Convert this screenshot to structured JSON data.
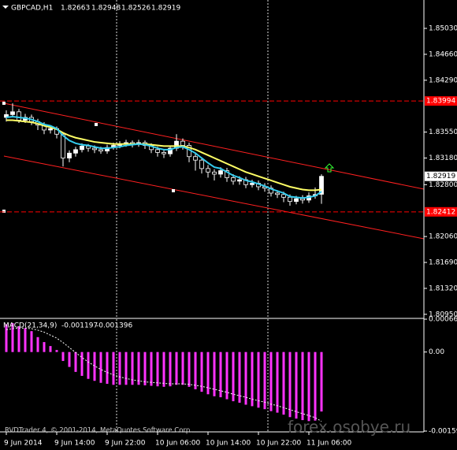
{
  "chart_data": [
    {
      "type": "candlestick",
      "title": "GBPCAD,H1",
      "categories": [
        "9 Jun 2014",
        null,
        null,
        null,
        null,
        null,
        null,
        null,
        "9 Jun 14:00",
        null,
        null,
        null,
        null,
        null,
        null,
        null,
        "9 Jun 22:00",
        null,
        null,
        null,
        null,
        null,
        null,
        null,
        "10 Jun 06:00",
        null,
        null,
        null,
        null,
        null,
        null,
        null,
        "10 Jun 14:00",
        null,
        null,
        null,
        null,
        null,
        null,
        null,
        "10 Jun 22:00",
        null,
        null,
        null,
        null,
        null,
        null,
        null,
        "11 Jun 06:00",
        null,
        null
      ],
      "open": [
        1.8376,
        1.838,
        1.8384,
        1.8372,
        1.8376,
        1.837,
        1.8365,
        1.8358,
        1.836,
        1.8352,
        1.8318,
        1.8325,
        1.833,
        1.8335,
        1.8332,
        1.833,
        1.8328,
        1.8333,
        1.8336,
        1.8338,
        1.834,
        1.8338,
        1.834,
        1.8336,
        1.833,
        1.8326,
        1.8324,
        1.8332,
        1.8342,
        1.8336,
        1.832,
        1.8315,
        1.8303,
        1.8298,
        1.8295,
        1.83,
        1.829,
        1.8285,
        1.8287,
        1.828,
        1.8282,
        1.8277,
        1.8275,
        1.8268,
        1.8266,
        1.8262,
        1.8256,
        1.826,
        1.8258,
        1.8264,
        1.82663
      ],
      "high": [
        1.8386,
        1.8396,
        1.8388,
        1.8381,
        1.838,
        1.8374,
        1.8369,
        1.8364,
        1.8363,
        1.8355,
        1.8329,
        1.8334,
        1.8339,
        1.8338,
        1.8336,
        1.8334,
        1.8337,
        1.834,
        1.8342,
        1.8344,
        1.8343,
        1.8344,
        1.8343,
        1.8339,
        1.8334,
        1.8331,
        1.8336,
        1.8352,
        1.8346,
        1.834,
        1.8326,
        1.8318,
        1.8308,
        1.8302,
        1.8305,
        1.8304,
        1.8295,
        1.8292,
        1.8291,
        1.8287,
        1.8286,
        1.8282,
        1.8279,
        1.8272,
        1.827,
        1.8266,
        1.8264,
        1.8265,
        1.8269,
        1.8276,
        1.82948
      ],
      "low": [
        1.837,
        1.8376,
        1.8368,
        1.8368,
        1.8365,
        1.8358,
        1.8352,
        1.8353,
        1.8346,
        1.8306,
        1.8312,
        1.832,
        1.8326,
        1.8327,
        1.8325,
        1.8324,
        1.8324,
        1.833,
        1.8332,
        1.8334,
        1.8333,
        1.8334,
        1.8331,
        1.8325,
        1.832,
        1.8318,
        1.832,
        1.8328,
        1.833,
        1.8312,
        1.83,
        1.8296,
        1.829,
        1.8286,
        1.829,
        1.8284,
        1.828,
        1.828,
        1.8275,
        1.8276,
        1.8272,
        1.827,
        1.8263,
        1.8261,
        1.8255,
        1.825,
        1.8252,
        1.8253,
        1.8254,
        1.826,
        1.82526
      ],
      "close": [
        1.838,
        1.8384,
        1.8372,
        1.8376,
        1.837,
        1.8365,
        1.8358,
        1.836,
        1.8352,
        1.8318,
        1.8325,
        1.833,
        1.8335,
        1.8332,
        1.833,
        1.8328,
        1.8333,
        1.8336,
        1.8338,
        1.834,
        1.8338,
        1.834,
        1.8336,
        1.833,
        1.8326,
        1.8324,
        1.8332,
        1.8342,
        1.8336,
        1.832,
        1.8315,
        1.8303,
        1.8298,
        1.8295,
        1.83,
        1.829,
        1.8285,
        1.8287,
        1.828,
        1.8282,
        1.8277,
        1.8275,
        1.8268,
        1.8266,
        1.8262,
        1.8256,
        1.826,
        1.8258,
        1.8264,
        1.8266,
        1.82919
      ],
      "up_color": "#ffffff",
      "down_color": "#000000",
      "wick_color": "#ffffff",
      "series": [
        {
          "color": "#ffff66",
          "values": [
            1.8372,
            1.8372,
            1.8371,
            1.837,
            1.8369,
            1.8367,
            1.8364,
            1.8362,
            1.8359,
            1.8354,
            1.835,
            1.8347,
            1.8345,
            1.8343,
            1.8341,
            1.834,
            1.8339,
            1.8338,
            1.8338,
            1.8338,
            1.8338,
            1.8338,
            1.8338,
            1.8337,
            1.8336,
            1.8335,
            1.8335,
            1.8335,
            1.8335,
            1.8333,
            1.833,
            1.8326,
            1.8322,
            1.8318,
            1.8314,
            1.831,
            1.8306,
            1.8302,
            1.8298,
            1.8295,
            1.8292,
            1.8289,
            1.8286,
            1.8283,
            1.828,
            1.8277,
            1.8275,
            1.8273,
            1.8272,
            1.8272,
            1.8273
          ]
        },
        {
          "color": "#33ccee",
          "values": [
            1.8376,
            1.8377,
            1.8376,
            1.8375,
            1.8373,
            1.837,
            1.8366,
            1.8364,
            1.836,
            1.835,
            1.8343,
            1.8339,
            1.8337,
            1.8336,
            1.8334,
            1.8332,
            1.8332,
            1.8333,
            1.8334,
            1.8336,
            1.8337,
            1.8338,
            1.8337,
            1.8335,
            1.8332,
            1.833,
            1.833,
            1.8333,
            1.8334,
            1.833,
            1.8325,
            1.8318,
            1.8311,
            1.8305,
            1.8303,
            1.8298,
            1.8293,
            1.829,
            1.8286,
            1.8284,
            1.8281,
            1.8278,
            1.8274,
            1.8271,
            1.8268,
            1.8263,
            1.8262,
            1.8261,
            1.8262,
            1.8264,
            1.827
          ]
        }
      ],
      "levels": [
        1.83994,
        1.82412
      ],
      "level_color": "#ff0000",
      "ylim": [
        1.80903,
        1.85435
      ],
      "yticks": [
        {
          "value": 1.8503,
          "label": "1.85030"
        },
        {
          "value": 1.8466,
          "label": "1.84660"
        },
        {
          "value": 1.8429,
          "label": "1.84290"
        },
        {
          "value": 1.8355,
          "label": "1.83550"
        },
        {
          "value": 1.8318,
          "label": "1.83180"
        },
        {
          "value": 1.828,
          "label": "1.82800"
        },
        {
          "value": 1.8206,
          "label": "1.82060"
        },
        {
          "value": 1.8169,
          "label": "1.81690"
        },
        {
          "value": 1.8132,
          "label": "1.81320"
        },
        {
          "value": 1.8095,
          "label": "1.80950"
        }
      ]
    },
    {
      "type": "macd",
      "title": "MACD(21,34,9)",
      "series": [
        {
          "color": "#ff33ff",
          "values": [
            0.00056,
            0.00058,
            0.00052,
            0.00048,
            0.00042,
            0.0003,
            0.0002,
            0.00012,
            4e-05,
            -0.00018,
            -0.0003,
            -0.0004,
            -0.00048,
            -0.00054,
            -0.00058,
            -0.00062,
            -0.00064,
            -0.00066,
            -0.00066,
            -0.00066,
            -0.00066,
            -0.00066,
            -0.00067,
            -0.00068,
            -0.00069,
            -0.0007,
            -0.00069,
            -0.00066,
            -0.00066,
            -0.0007,
            -0.00075,
            -0.0008,
            -0.00085,
            -0.00089,
            -0.00091,
            -0.00095,
            -0.00099,
            -0.00102,
            -0.00106,
            -0.00109,
            -0.00112,
            -0.00115,
            -0.00119,
            -0.00122,
            -0.00126,
            -0.00131,
            -0.00134,
            -0.00137,
            -0.00139,
            -0.00138,
            -0.001197
          ]
        },
        {
          "color": "#ffffff",
          "values": [
            0.00045,
            0.00047,
            0.00048,
            0.00048,
            0.00047,
            0.00044,
            0.0004,
            0.00034,
            0.00028,
            0.00019,
            9e-05,
            -1e-05,
            -0.00011,
            -0.0002,
            -0.00028,
            -0.00035,
            -0.00041,
            -0.00046,
            -0.0005,
            -0.00053,
            -0.00056,
            -0.00058,
            -0.0006,
            -0.00061,
            -0.00062,
            -0.00063,
            -0.00064,
            -0.00064,
            -0.00064,
            -0.00065,
            -0.00067,
            -0.00069,
            -0.00072,
            -0.00075,
            -0.00078,
            -0.00081,
            -0.00085,
            -0.00088,
            -0.00091,
            -0.00095,
            -0.00098,
            -0.00101,
            -0.00105,
            -0.00108,
            -0.00112,
            -0.00116,
            -0.0012,
            -0.00124,
            -0.00128,
            -0.00132,
            -0.001396
          ]
        }
      ],
      "ylim": [
        -0.001591,
        0.000661
      ],
      "yticks": [
        0.000661,
        {
          "value": 0,
          "label": "0.00"
        },
        -0.001591
      ]
    }
  ],
  "copyright": "RVDTrader 4, © 2001-2014, MetaQuotes Software Corp.",
  "watermark": "forex.osobye.ru"
}
